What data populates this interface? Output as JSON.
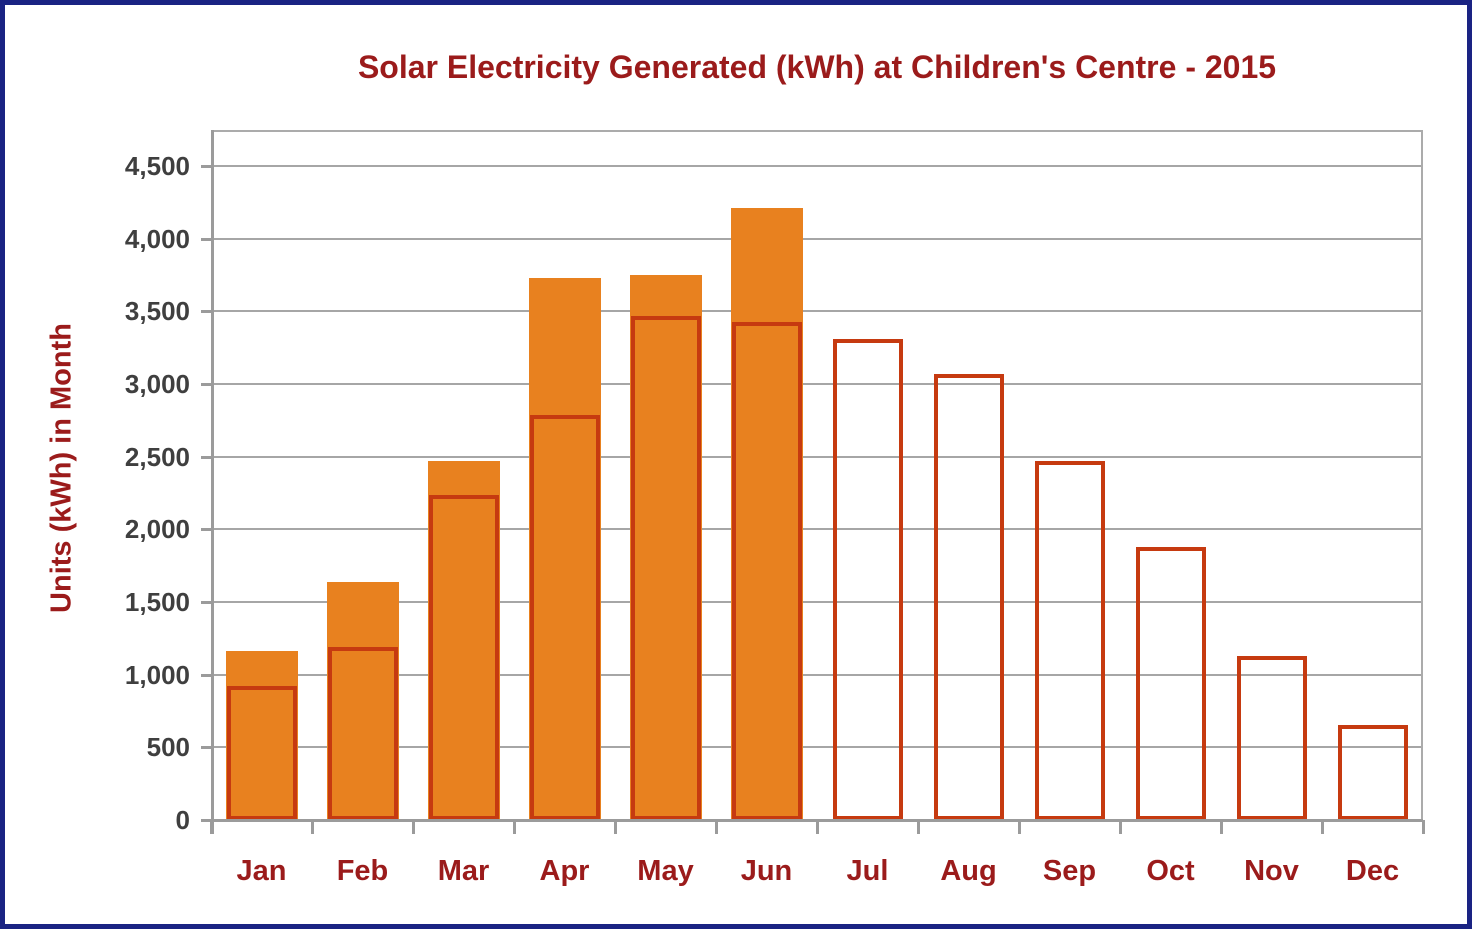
{
  "title": "Solar Electricity Generated (kWh) at Children's Centre - 2015",
  "y_axis": {
    "label": "Units (kWh) in Month",
    "tick_labels": [
      "4,500",
      "4,000",
      "3,500",
      "3,000",
      "2,500",
      "2,000",
      "1,500",
      "1,000",
      "500",
      "0"
    ]
  },
  "x_axis": {
    "labels": [
      "Jan",
      "Feb",
      "Mar",
      "Apr",
      "May",
      "Jun",
      "Jul",
      "Aug",
      "Sep",
      "Oct",
      "Nov",
      "Dec"
    ]
  },
  "colors": {
    "filled_bar": "#E8811F",
    "outline_bar": "#C63A10",
    "heading_text": "#9B1B1B",
    "tick_text": "#3F3F3F",
    "gridline": "#A6A6A6",
    "axis": "#9B9B9B",
    "page_border": "#1A2383"
  },
  "chart_data": {
    "type": "bar",
    "title": "Solar Electricity Generated (kWh) at Children's Centre - 2015",
    "xlabel": "",
    "ylabel": "Units (kWh) in Month",
    "categories": [
      "Jan",
      "Feb",
      "Mar",
      "Apr",
      "May",
      "Jun",
      "Jul",
      "Aug",
      "Sep",
      "Oct",
      "Nov",
      "Dec"
    ],
    "series": [
      {
        "name": "filled-orange-bars",
        "style": "filled",
        "color": "#E8811F",
        "values": [
          1165,
          1640,
          2470,
          3730,
          3750,
          4210,
          null,
          null,
          null,
          null,
          null,
          null
        ]
      },
      {
        "name": "outlined-bars",
        "style": "outlined",
        "color": "#C63A10",
        "values": [
          920,
          1190,
          2235,
          2790,
          3465,
          3425,
          3310,
          3070,
          2470,
          1880,
          1125,
          655
        ]
      }
    ],
    "ylim": [
      0,
      4750
    ],
    "ytick_step": 500,
    "grid": true,
    "legend_position": "none"
  }
}
